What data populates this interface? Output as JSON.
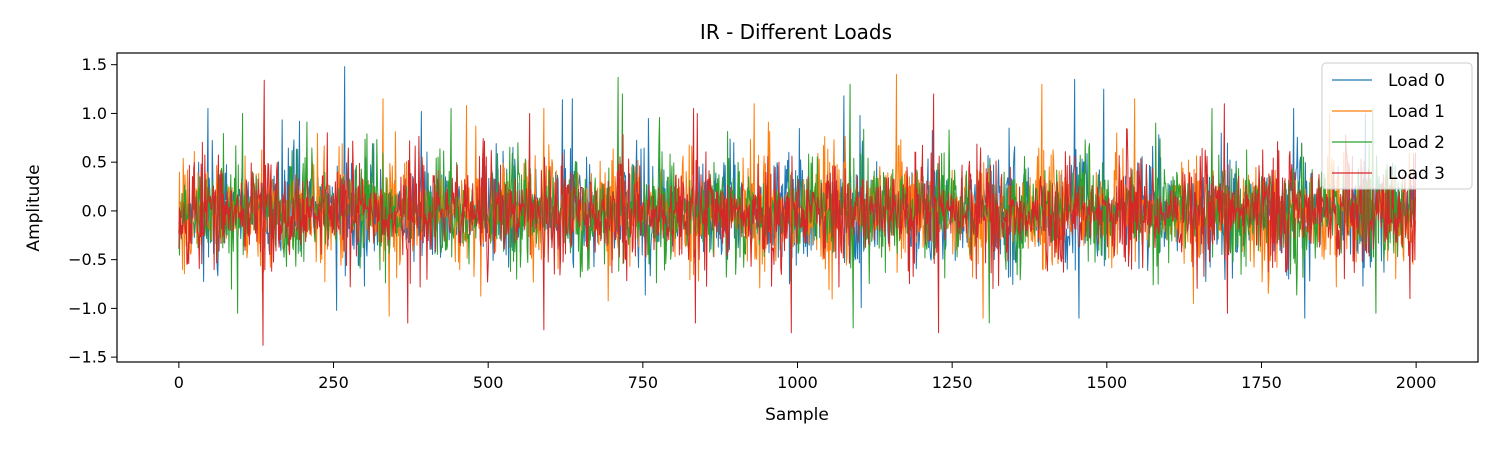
{
  "chart_data": {
    "type": "line",
    "title": "IR - Different Loads",
    "xlabel": "Sample",
    "ylabel": "Amplitude",
    "xlim": [
      -100,
      2100
    ],
    "ylim": [
      -1.55,
      1.62
    ],
    "x_ticks": [
      0,
      250,
      500,
      750,
      1000,
      1250,
      1500,
      1750,
      2000
    ],
    "x_tick_labels": [
      "0",
      "250",
      "500",
      "750",
      "1000",
      "1250",
      "1500",
      "1750",
      "2000"
    ],
    "y_ticks": [
      -1.5,
      -1.0,
      -0.5,
      0.0,
      0.5,
      1.0,
      1.5
    ],
    "y_tick_labels": [
      "−1.5",
      "−1.0",
      "−0.5",
      "0.0",
      "0.5",
      "1.0",
      "1.5"
    ],
    "grid": false,
    "legend_position": "top-right",
    "n_samples": 2000,
    "series": [
      {
        "name": "Load 0",
        "color": "#1f77b4",
        "approx_peaks": [
          [
            47,
            1.05
          ],
          [
            195,
            0.92
          ],
          [
            268,
            1.48
          ],
          [
            255,
            -1.02
          ],
          [
            392,
            1.02
          ],
          [
            620,
            1.14
          ],
          [
            636,
            1.15
          ],
          [
            1075,
            1.18
          ],
          [
            1448,
            1.35
          ],
          [
            1455,
            -1.1
          ],
          [
            1495,
            1.25
          ],
          [
            1802,
            1.05
          ],
          [
            1820,
            -1.1
          ]
        ],
        "envelope": 0.5,
        "seed": 11
      },
      {
        "name": "Load 1",
        "color": "#ff7f0e",
        "approx_peaks": [
          [
            330,
            1.15
          ],
          [
            340,
            -1.08
          ],
          [
            465,
            1.08
          ],
          [
            590,
            1.05
          ],
          [
            930,
            1.1
          ],
          [
            1160,
            1.4
          ],
          [
            1300,
            -1.1
          ],
          [
            1395,
            1.3
          ],
          [
            1545,
            1.15
          ],
          [
            1640,
            -0.95
          ],
          [
            1860,
            1.0
          ]
        ],
        "envelope": 0.5,
        "seed": 23
      },
      {
        "name": "Load 2",
        "color": "#2ca02c",
        "approx_peaks": [
          [
            103,
            1.0
          ],
          [
            95,
            -1.05
          ],
          [
            440,
            1.05
          ],
          [
            710,
            1.37
          ],
          [
            717,
            1.2
          ],
          [
            1085,
            1.3
          ],
          [
            1090,
            -1.2
          ],
          [
            1310,
            -1.15
          ],
          [
            1670,
            1.05
          ],
          [
            1930,
            1.05
          ],
          [
            1935,
            -1.05
          ]
        ],
        "envelope": 0.5,
        "seed": 37
      },
      {
        "name": "Load 3",
        "color": "#d62728",
        "approx_peaks": [
          [
            138,
            1.34
          ],
          [
            136,
            -1.38
          ],
          [
            240,
            0.8
          ],
          [
            370,
            -1.15
          ],
          [
            567,
            1.0
          ],
          [
            590,
            -1.22
          ],
          [
            832,
            1.05
          ],
          [
            835,
            -1.15
          ],
          [
            990,
            -1.25
          ],
          [
            1220,
            1.2
          ],
          [
            1228,
            -1.25
          ],
          [
            1690,
            1.1
          ],
          [
            1695,
            -1.05
          ],
          [
            1990,
            -0.9
          ]
        ],
        "envelope": 0.5,
        "seed": 53
      }
    ]
  }
}
